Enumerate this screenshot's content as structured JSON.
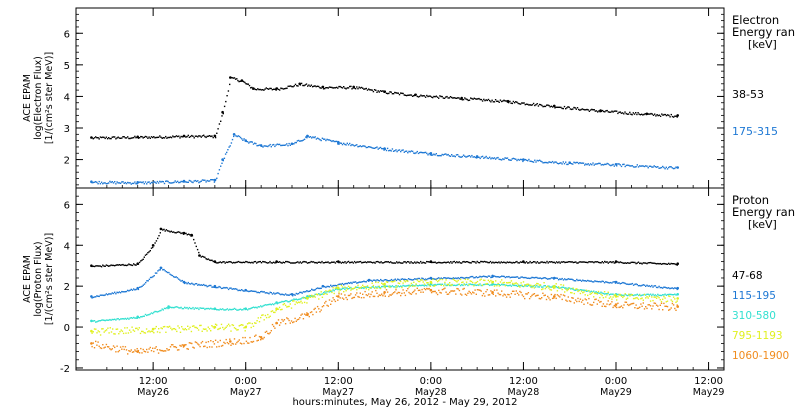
{
  "chart_data": [
    {
      "type": "scatter",
      "ylabel_lines": [
        "ACE EPAM",
        "log(Electron Flux)",
        "[1/(cm²s ster MeV)]"
      ],
      "yticks": [
        2,
        3,
        4,
        5,
        6
      ],
      "ylim": [
        1.1,
        6.8
      ],
      "legend": {
        "title_lines": [
          "Electron",
          "Energy ran",
          "[keV]"
        ],
        "placement": "right"
      },
      "series": [
        {
          "name": "38-53",
          "color": "#000000",
          "points": [
            [
              "2012-05-26T04:00",
              2.7
            ],
            [
              "2012-05-26T10:00",
              2.72
            ],
            [
              "2012-05-26T16:00",
              2.75
            ],
            [
              "2012-05-26T20:00",
              2.75
            ],
            [
              "2012-05-26T21:00",
              3.5
            ],
            [
              "2012-05-26T22:00",
              4.6
            ],
            [
              "2012-05-26T23:30",
              4.5
            ],
            [
              "2012-05-27T01:00",
              4.25
            ],
            [
              "2012-05-27T04:00",
              4.25
            ],
            [
              "2012-05-27T07:00",
              4.4
            ],
            [
              "2012-05-27T10:00",
              4.3
            ],
            [
              "2012-05-27T14:00",
              4.3
            ],
            [
              "2012-05-27T18:00",
              4.15
            ],
            [
              "2012-05-27T22:00",
              4.05
            ],
            [
              "2012-05-28T04:00",
              3.95
            ],
            [
              "2012-05-28T10:00",
              3.85
            ],
            [
              "2012-05-28T16:00",
              3.7
            ],
            [
              "2012-05-28T22:00",
              3.55
            ],
            [
              "2012-05-29T04:00",
              3.45
            ],
            [
              "2012-05-29T08:00",
              3.4
            ]
          ]
        },
        {
          "name": "175-315",
          "color": "#1e78d4",
          "points": [
            [
              "2012-05-26T04:00",
              1.3
            ],
            [
              "2012-05-26T10:00",
              1.28
            ],
            [
              "2012-05-26T16:00",
              1.32
            ],
            [
              "2012-05-26T20:00",
              1.35
            ],
            [
              "2012-05-26T21:00",
              2.0
            ],
            [
              "2012-05-26T22:30",
              2.8
            ],
            [
              "2012-05-27T00:00",
              2.6
            ],
            [
              "2012-05-27T02:00",
              2.45
            ],
            [
              "2012-05-27T06:00",
              2.5
            ],
            [
              "2012-05-27T08:00",
              2.75
            ],
            [
              "2012-05-27T12:00",
              2.55
            ],
            [
              "2012-05-27T18:00",
              2.35
            ],
            [
              "2012-05-28T00:00",
              2.2
            ],
            [
              "2012-05-28T06:00",
              2.1
            ],
            [
              "2012-05-28T12:00",
              2.0
            ],
            [
              "2012-05-28T18:00",
              1.9
            ],
            [
              "2012-05-29T00:00",
              1.85
            ],
            [
              "2012-05-29T08:00",
              1.75
            ]
          ]
        }
      ]
    },
    {
      "type": "scatter",
      "ylabel_lines": [
        "ACE EPAM",
        "log(Proton Flux)",
        "[1/(cm²s ster MeV)]"
      ],
      "yticks": [
        -2,
        0,
        2,
        4,
        6
      ],
      "ylim": [
        -2.1,
        6.8
      ],
      "legend": {
        "title_lines": [
          "Proton",
          "Energy ran",
          "[keV]"
        ],
        "placement": "right"
      },
      "series": [
        {
          "name": "47-68",
          "color": "#000000",
          "points": [
            [
              "2012-05-26T04:00",
              3.0
            ],
            [
              "2012-05-26T10:00",
              3.1
            ],
            [
              "2012-05-26T12:00",
              4.0
            ],
            [
              "2012-05-26T13:00",
              4.8
            ],
            [
              "2012-05-26T16:00",
              4.6
            ],
            [
              "2012-05-26T17:00",
              4.5
            ],
            [
              "2012-05-26T18:00",
              3.5
            ],
            [
              "2012-05-26T20:00",
              3.2
            ],
            [
              "2012-05-27T04:00",
              3.2
            ],
            [
              "2012-05-27T12:00",
              3.2
            ],
            [
              "2012-05-28T00:00",
              3.2
            ],
            [
              "2012-05-28T12:00",
              3.2
            ],
            [
              "2012-05-29T00:00",
              3.2
            ],
            [
              "2012-05-29T08:00",
              3.1
            ]
          ]
        },
        {
          "name": "115-195",
          "color": "#1e78d4",
          "points": [
            [
              "2012-05-26T04:00",
              1.5
            ],
            [
              "2012-05-26T10:00",
              1.9
            ],
            [
              "2012-05-26T13:00",
              2.9
            ],
            [
              "2012-05-26T16:00",
              2.2
            ],
            [
              "2012-05-26T20:00",
              2.0
            ],
            [
              "2012-05-27T00:00",
              1.8
            ],
            [
              "2012-05-27T06:00",
              1.6
            ],
            [
              "2012-05-27T10:00",
              2.0
            ],
            [
              "2012-05-27T16:00",
              2.3
            ],
            [
              "2012-05-28T00:00",
              2.4
            ],
            [
              "2012-05-28T08:00",
              2.5
            ],
            [
              "2012-05-28T16:00",
              2.4
            ],
            [
              "2012-05-29T00:00",
              2.2
            ],
            [
              "2012-05-29T08:00",
              1.9
            ]
          ]
        },
        {
          "name": "310-580",
          "color": "#33e0d0",
          "points": [
            [
              "2012-05-26T04:00",
              0.3
            ],
            [
              "2012-05-26T10:00",
              0.5
            ],
            [
              "2012-05-26T14:00",
              1.0
            ],
            [
              "2012-05-26T20:00",
              0.9
            ],
            [
              "2012-05-27T00:00",
              0.9
            ],
            [
              "2012-05-27T04:00",
              1.2
            ],
            [
              "2012-05-27T08:00",
              1.5
            ],
            [
              "2012-05-27T12:00",
              1.9
            ],
            [
              "2012-05-27T18:00",
              2.0
            ],
            [
              "2012-05-28T00:00",
              2.1
            ],
            [
              "2012-05-28T08:00",
              2.1
            ],
            [
              "2012-05-28T16:00",
              2.0
            ],
            [
              "2012-05-29T00:00",
              1.6
            ],
            [
              "2012-05-29T08:00",
              1.6
            ]
          ]
        },
        {
          "name": "795-1193",
          "color": "#e0f020",
          "points": [
            [
              "2012-05-26T04:00",
              -0.2
            ],
            [
              "2012-05-26T12:00",
              -0.1
            ],
            [
              "2012-05-26T20:00",
              0.0
            ],
            [
              "2012-05-27T00:00",
              0.0
            ],
            [
              "2012-05-27T04:00",
              0.9
            ],
            [
              "2012-05-27T08:00",
              1.4
            ],
            [
              "2012-05-27T12:00",
              1.9
            ],
            [
              "2012-05-27T18:00",
              2.1
            ],
            [
              "2012-05-28T00:00",
              2.2
            ],
            [
              "2012-05-28T08:00",
              2.2
            ],
            [
              "2012-05-28T16:00",
              2.0
            ],
            [
              "2012-05-29T00:00",
              1.5
            ],
            [
              "2012-05-29T08:00",
              1.4
            ]
          ]
        },
        {
          "name": "1060-1900",
          "color": "#f08c1e",
          "points": [
            [
              "2012-05-26T04:00",
              -0.8
            ],
            [
              "2012-05-26T10:00",
              -1.2
            ],
            [
              "2012-05-26T16:00",
              -0.9
            ],
            [
              "2012-05-26T22:00",
              -0.7
            ],
            [
              "2012-05-27T02:00",
              -0.5
            ],
            [
              "2012-05-27T04:00",
              0.2
            ],
            [
              "2012-05-27T08:00",
              0.6
            ],
            [
              "2012-05-27T12:00",
              1.5
            ],
            [
              "2012-05-27T18:00",
              1.7
            ],
            [
              "2012-05-28T00:00",
              1.8
            ],
            [
              "2012-05-28T08:00",
              1.7
            ],
            [
              "2012-05-28T16:00",
              1.5
            ],
            [
              "2012-05-29T00:00",
              1.1
            ],
            [
              "2012-05-29T08:00",
              1.0
            ]
          ]
        }
      ]
    }
  ],
  "x_axis": {
    "xlim": [
      "2012-05-26T02:00",
      "2012-05-29T14:00"
    ],
    "ticks": [
      {
        "t": "2012-05-26T12:00",
        "time": "12:00",
        "day": "May26"
      },
      {
        "t": "2012-05-27T00:00",
        "time": "0:00",
        "day": "May27"
      },
      {
        "t": "2012-05-27T12:00",
        "time": "12:00",
        "day": "May27"
      },
      {
        "t": "2012-05-28T00:00",
        "time": "0:00",
        "day": "May28"
      },
      {
        "t": "2012-05-28T12:00",
        "time": "12:00",
        "day": "May28"
      },
      {
        "t": "2012-05-29T00:00",
        "time": "0:00",
        "day": "May29"
      },
      {
        "t": "2012-05-29T12:00",
        "time": "12:00",
        "day": "May29"
      }
    ],
    "label": "hours:minutes, May 26, 2012 - May 29, 2012"
  }
}
